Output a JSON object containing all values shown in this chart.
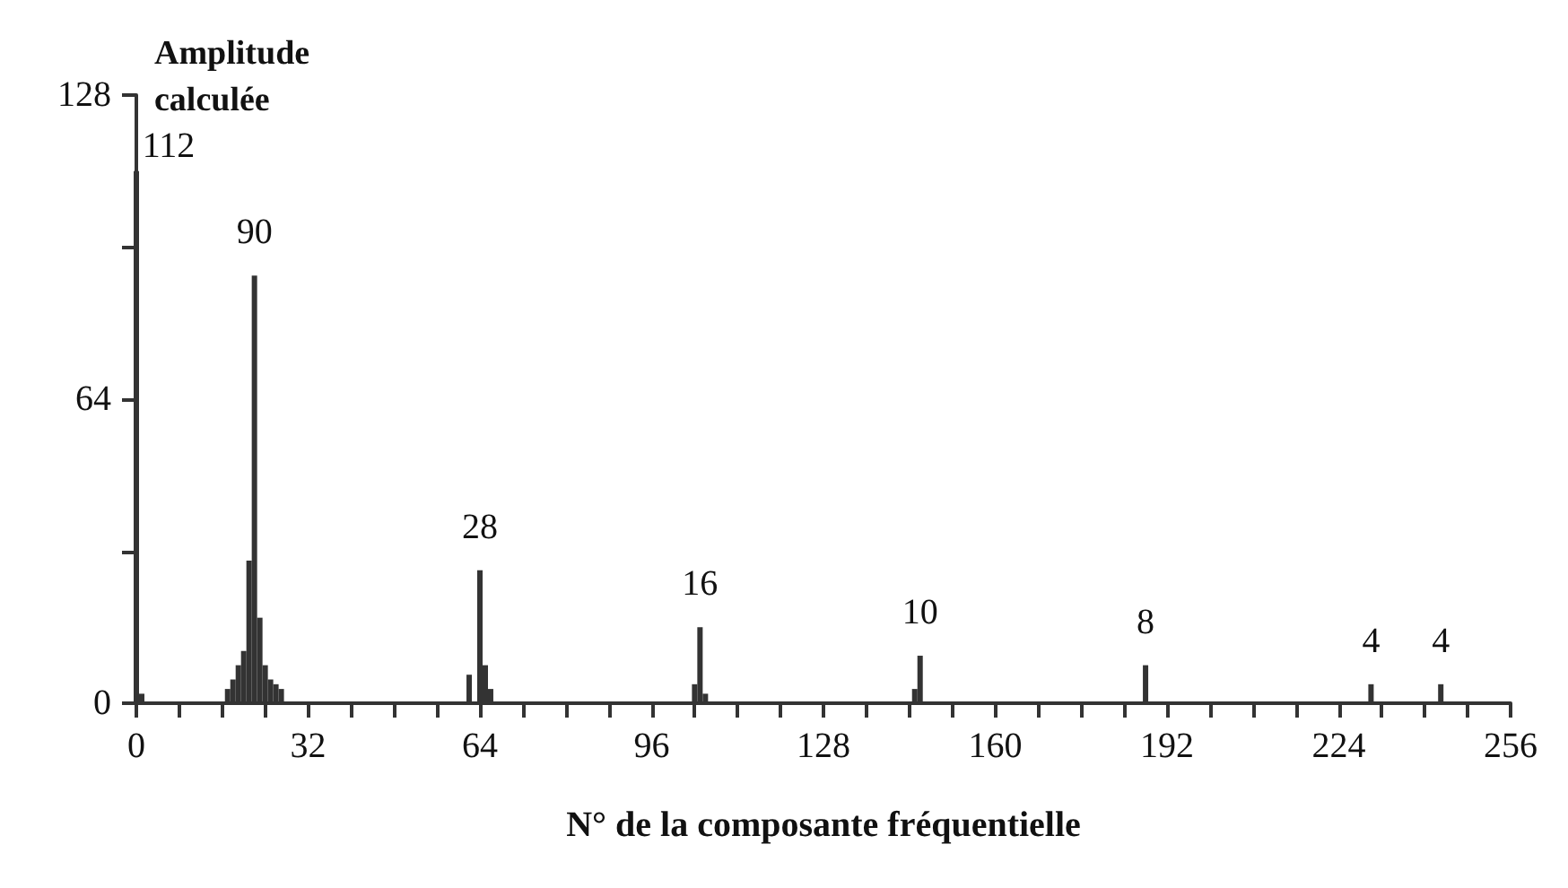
{
  "chart_data": {
    "type": "bar",
    "xlabel": "N° de la composante fréquentielle",
    "ylabel": "Amplitude calculée",
    "x": [
      0,
      1,
      17,
      18,
      19,
      20,
      21,
      22,
      23,
      24,
      25,
      26,
      27,
      62,
      64,
      65,
      66,
      104,
      105,
      106,
      145,
      146,
      188,
      230,
      243
    ],
    "values": [
      112,
      2,
      3,
      5,
      8,
      11,
      30,
      90,
      18,
      8,
      5,
      4,
      3,
      6,
      28,
      8,
      3,
      4,
      16,
      2,
      3,
      10,
      8,
      4,
      4
    ],
    "value_labels": [
      "112",
      null,
      null,
      null,
      null,
      null,
      null,
      "90",
      null,
      null,
      null,
      null,
      null,
      null,
      "28",
      null,
      null,
      null,
      "16",
      null,
      null,
      "10",
      "8",
      "4",
      "4"
    ],
    "color": "#333333",
    "xlim": [
      0,
      256
    ],
    "xticks": [
      0,
      {
        "value": 8,
        "label": null
      },
      {
        "value": 16,
        "label": null
      },
      {
        "value": 24,
        "label": null
      },
      32,
      {
        "value": 40,
        "label": null
      },
      {
        "value": 48,
        "label": null
      },
      {
        "value": 56,
        "label": null
      },
      64,
      {
        "value": 72,
        "label": null
      },
      {
        "value": 80,
        "label": null
      },
      {
        "value": 88,
        "label": null
      },
      96,
      {
        "value": 104,
        "label": null
      },
      {
        "value": 112,
        "label": null
      },
      {
        "value": 120,
        "label": null
      },
      128,
      {
        "value": 136,
        "label": null
      },
      {
        "value": 144,
        "label": null
      },
      {
        "value": 152,
        "label": null
      },
      160,
      {
        "value": 168,
        "label": null
      },
      {
        "value": 176,
        "label": null
      },
      {
        "value": 184,
        "label": null
      },
      192,
      {
        "value": 200,
        "label": null
      },
      {
        "value": 208,
        "label": null
      },
      {
        "value": 216,
        "label": null
      },
      224,
      {
        "value": 232,
        "label": null
      },
      {
        "value": 240,
        "label": null
      },
      {
        "value": 248,
        "label": null
      },
      256
    ],
    "ylim": [
      0,
      128
    ],
    "yticks": [
      0,
      {
        "value": 32,
        "label": null
      },
      64,
      {
        "value": 96,
        "label": null
      },
      128
    ],
    "grid": false
  }
}
